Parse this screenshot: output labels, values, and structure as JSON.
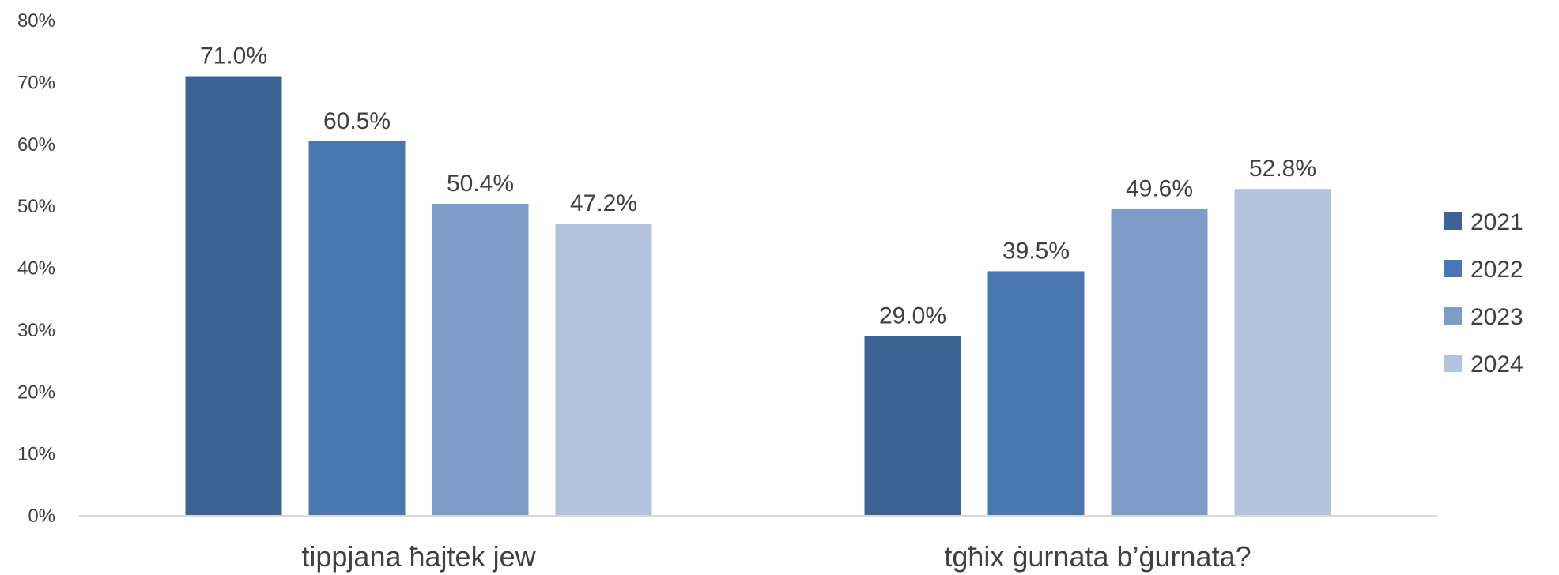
{
  "chart_data": {
    "type": "bar",
    "categories": [
      "tippjana ħajtek jew",
      "tgħix ġurnata b’ġurnata?"
    ],
    "series": [
      {
        "name": "2021",
        "values": [
          71.0,
          29.0
        ],
        "color": "#3b6495"
      },
      {
        "name": "2022",
        "values": [
          60.5,
          39.5
        ],
        "color": "#4877b1"
      },
      {
        "name": "2023",
        "values": [
          50.4,
          49.6
        ],
        "color": "#7e9cc8"
      },
      {
        "name": "2024",
        "values": [
          47.2,
          52.8
        ],
        "color": "#b5c4de"
      }
    ],
    "data_labels": [
      [
        "71.0%",
        "29.0%"
      ],
      [
        "60.5%",
        "39.5%"
      ],
      [
        "50.4%",
        "49.6%"
      ],
      [
        "47.2%",
        "52.8%"
      ]
    ],
    "y_ticks": [
      "0%",
      "10%",
      "20%",
      "30%",
      "40%",
      "50%",
      "60%",
      "70%",
      "80%"
    ],
    "ylim": [
      0,
      80
    ],
    "grid": false,
    "legend_position": "right",
    "title": "",
    "xlabel": "",
    "ylabel": ""
  }
}
